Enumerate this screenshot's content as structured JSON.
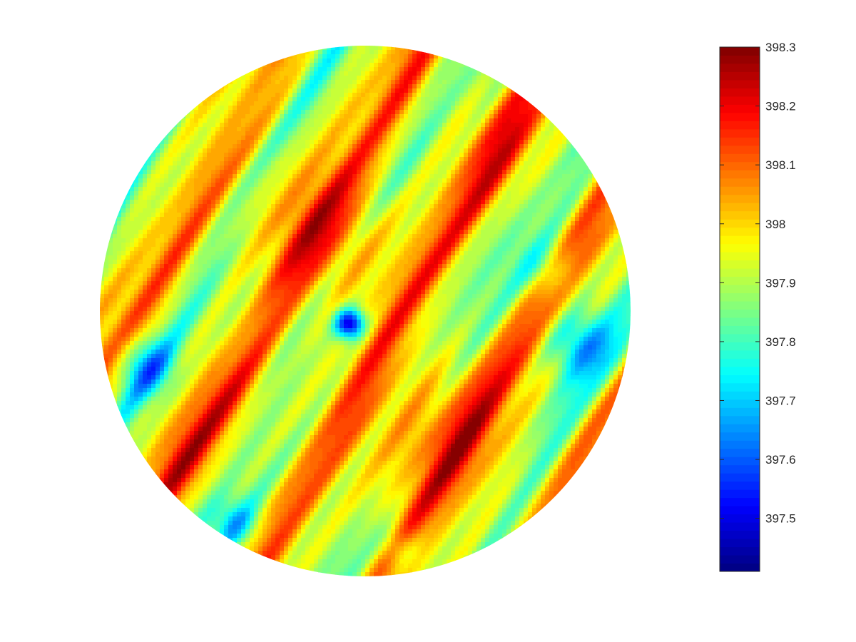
{
  "chart_data": {
    "type": "heatmap",
    "subtype": "filled contour map on a circular domain",
    "title": "",
    "xlabel": "",
    "ylabel": "",
    "axes_visible": false,
    "grid": false,
    "colormap": "jet",
    "colorbar": {
      "placement": "right",
      "range": [
        397.41,
        398.3
      ],
      "ticks": [
        397.5,
        397.6,
        397.7,
        397.8,
        397.9,
        398,
        398.1,
        398.2,
        398.3
      ],
      "tick_labels": [
        "397.5",
        "397.6",
        "397.7",
        "397.8",
        "397.9",
        "398",
        "398.1",
        "398.2",
        "398.3"
      ]
    },
    "field_description_values": {
      "mean_level": 397.95,
      "max_value": 398.3,
      "min_value": 397.41,
      "stripe_orientation": "diagonal, upper-left to lower-right"
    }
  },
  "colors": {
    "jet_stops": [
      "#00008f",
      "#0000ff",
      "#00ffff",
      "#80ff80",
      "#ffff00",
      "#ff8000",
      "#ff0000",
      "#800000"
    ]
  }
}
